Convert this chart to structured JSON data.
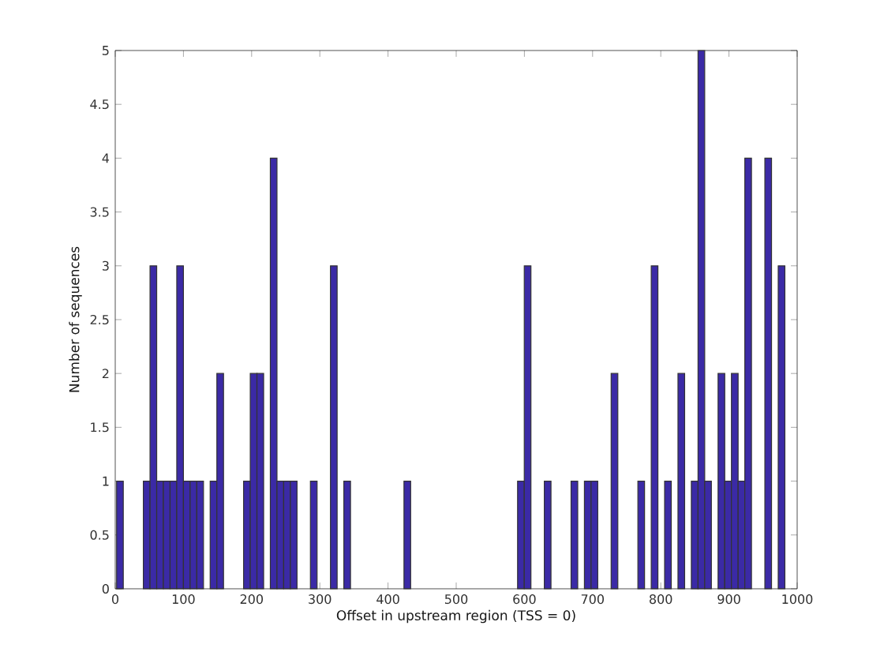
{
  "chart_data": {
    "type": "histogram",
    "xlabel": "Offset in upstream region (TSS = 0)",
    "ylabel": "Number of sequences",
    "color": "#3b2aa6",
    "bins": [
      2,
      11.8,
      21.6,
      31.4,
      41.2,
      51,
      60.8,
      70.6,
      80.4,
      90.2,
      100,
      109.8,
      119.6,
      129.4,
      139.2,
      149,
      158.8,
      168.6,
      178.4,
      188.2,
      198,
      207.8,
      217.6,
      227.4,
      237.2,
      247,
      256.8,
      266.6,
      276.4,
      286.2,
      296,
      305.8,
      315.6,
      325.4,
      335.2,
      345,
      354.8,
      364.6,
      374.4,
      384.2,
      394,
      403.8,
      413.6,
      423.4,
      433.2,
      443,
      452.8,
      462.6,
      472.4,
      482.2,
      492,
      501.8,
      511.6,
      521.4,
      531.2,
      541,
      550.8,
      560.6,
      570.4,
      580.2,
      590,
      599.8,
      609.6,
      619.4,
      629.2,
      639,
      648.8,
      658.6,
      668.4,
      678.2,
      688,
      697.8,
      707.6,
      717.4,
      727.2,
      737,
      746.8,
      756.6,
      766.4,
      776.2,
      786,
      795.8,
      805.6,
      815.4,
      825.2,
      835,
      844.8,
      854.6,
      864.4,
      874.2,
      884,
      893.8,
      903.6,
      913.4,
      923.2,
      933,
      942.8,
      952.6,
      962.4,
      972.2,
      982
    ],
    "values": [
      1,
      0,
      0,
      0,
      1,
      3,
      1,
      1,
      1,
      3,
      1,
      1,
      1,
      0,
      1,
      2,
      0,
      0,
      0,
      1,
      2,
      2,
      0,
      4,
      1,
      1,
      1,
      0,
      0,
      1,
      0,
      0,
      3,
      0,
      1,
      0,
      0,
      0,
      0,
      0,
      0,
      0,
      0,
      1,
      0,
      0,
      0,
      0,
      0,
      0,
      0,
      0,
      0,
      0,
      0,
      0,
      0,
      0,
      0,
      0,
      1,
      3,
      0,
      0,
      1,
      0,
      0,
      0,
      1,
      0,
      1,
      1,
      0,
      0,
      2,
      0,
      0,
      0,
      1,
      0,
      3,
      0,
      1,
      0,
      2,
      0,
      1,
      5,
      1,
      0,
      2,
      1,
      2,
      1,
      4,
      0,
      0,
      4,
      0,
      3
    ],
    "xlim": [
      0,
      1000
    ],
    "xticks": [
      0,
      100,
      200,
      300,
      400,
      500,
      600,
      700,
      800,
      900,
      1000
    ],
    "ylim": [
      0,
      5
    ],
    "yticks": [
      0,
      0.5,
      1,
      1.5,
      2,
      2.5,
      3,
      3.5,
      4,
      4.5,
      5
    ]
  }
}
